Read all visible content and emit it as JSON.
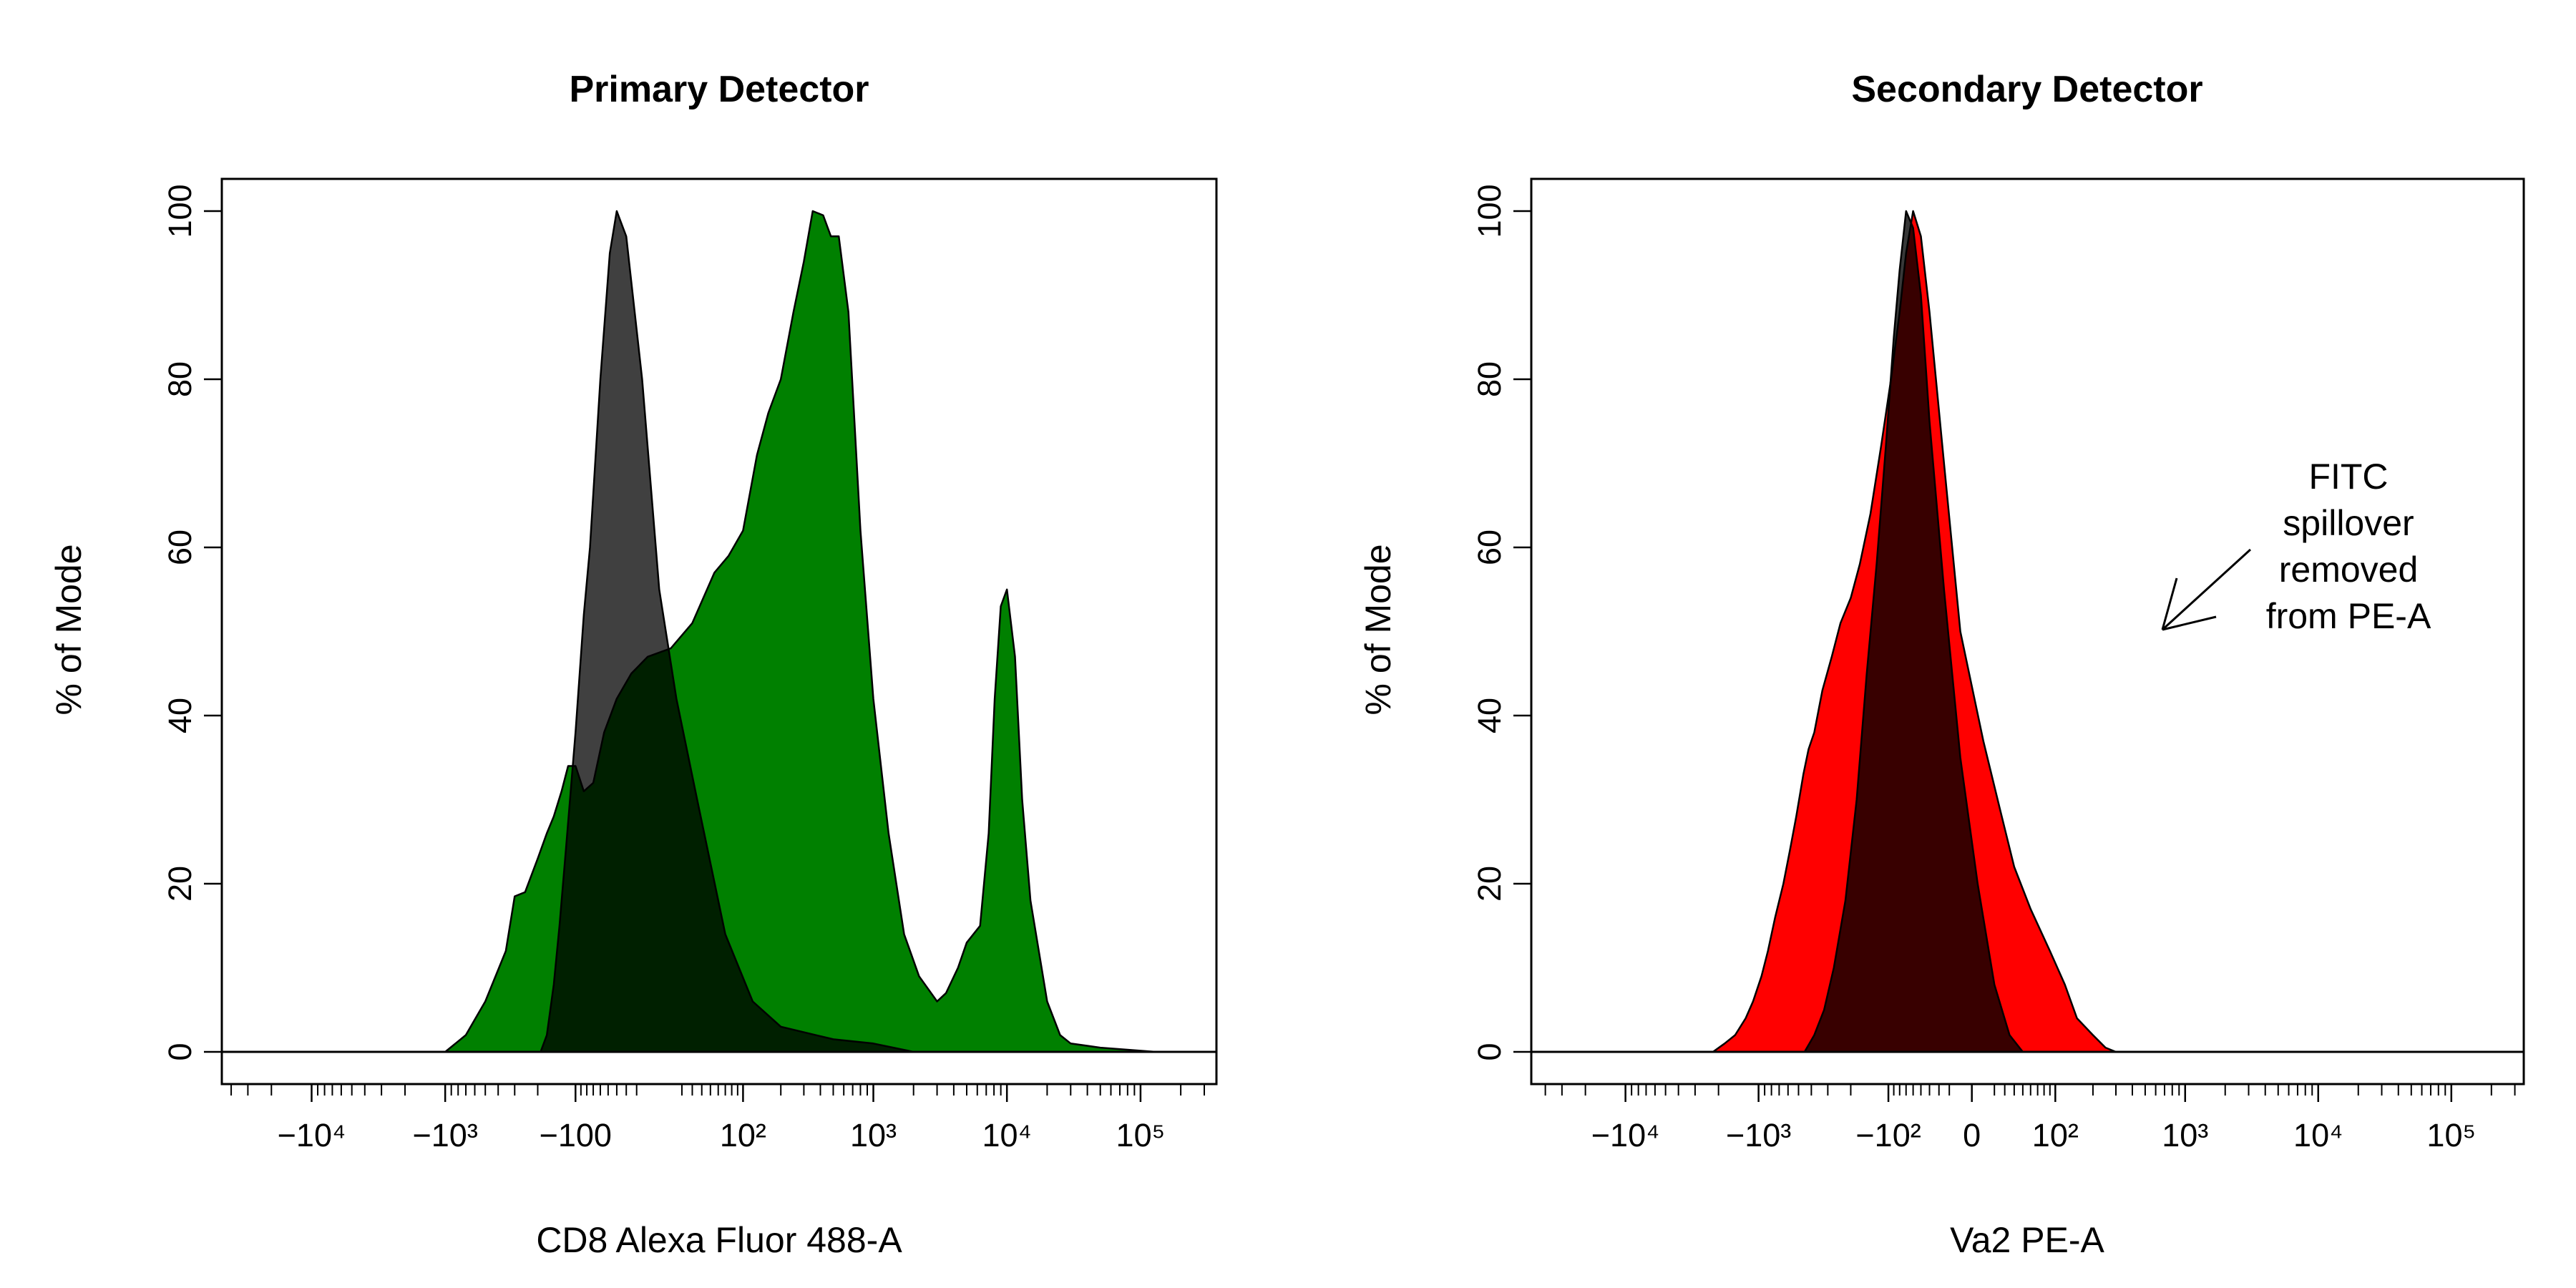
{
  "chart_data": [
    {
      "type": "area",
      "title": "Primary Detector",
      "xlabel": "CD8 Alexa Fluor 488-A",
      "ylabel": "% of Mode",
      "x_scale": "biexponential",
      "ylim": [
        0,
        100
      ],
      "y_ticks": [
        "0",
        "20",
        "40",
        "60",
        "80",
        "100"
      ],
      "x_ticks": [
        {
          "value": -10000,
          "label": "−10⁴"
        },
        {
          "value": -1000,
          "label": "−10³"
        },
        {
          "value": -100,
          "label": "−100"
        },
        {
          "value": 100,
          "label": "10²"
        },
        {
          "value": 1000,
          "label": "10³"
        },
        {
          "value": 10000,
          "label": "10⁴"
        },
        {
          "value": 100000,
          "label": "10⁵"
        }
      ],
      "series": [
        {
          "color": "#008000",
          "points": [
            [
              -1000,
              0
            ],
            [
              -700,
              2
            ],
            [
              -500,
              6
            ],
            [
              -350,
              12
            ],
            [
              -300,
              18.5
            ],
            [
              -250,
              19
            ],
            [
              -200,
              23
            ],
            [
              -170,
              26
            ],
            [
              -150,
              28
            ],
            [
              -130,
              31
            ],
            [
              -115,
              34
            ],
            [
              -100,
              34
            ],
            [
              -85,
              31
            ],
            [
              -70,
              32
            ],
            [
              -55,
              38
            ],
            [
              -40,
              42
            ],
            [
              -25,
              45
            ],
            [
              -10,
              47
            ],
            [
              10,
              48
            ],
            [
              30,
              51
            ],
            [
              55,
              57
            ],
            [
              75,
              59
            ],
            [
              100,
              62
            ],
            [
              130,
              71
            ],
            [
              160,
              76
            ],
            [
              200,
              80
            ],
            [
              250,
              88
            ],
            [
              300,
              94
            ],
            [
              350,
              100
            ],
            [
              420,
              99.5
            ],
            [
              480,
              97
            ],
            [
              550,
              97
            ],
            [
              650,
              88
            ],
            [
              800,
              62
            ],
            [
              1000,
              42
            ],
            [
              1300,
              26
            ],
            [
              1700,
              14
            ],
            [
              2200,
              9
            ],
            [
              3000,
              6
            ],
            [
              3500,
              7
            ],
            [
              4300,
              10
            ],
            [
              5000,
              13
            ],
            [
              6300,
              15
            ],
            [
              7300,
              26
            ],
            [
              8100,
              42
            ],
            [
              9000,
              53
            ],
            [
              10000,
              55
            ],
            [
              11500,
              47
            ],
            [
              13000,
              30
            ],
            [
              15000,
              18
            ],
            [
              20000,
              6
            ],
            [
              25000,
              2
            ],
            [
              30000,
              1
            ],
            [
              50000,
              0.5
            ],
            [
              130000,
              0
            ]
          ]
        },
        {
          "color": "#000000",
          "opacity": 0.75,
          "points": [
            [
              -190,
              0
            ],
            [
              -170,
              2
            ],
            [
              -150,
              8
            ],
            [
              -135,
              15
            ],
            [
              -120,
              24
            ],
            [
              -100,
              38
            ],
            [
              -85,
              52
            ],
            [
              -75,
              60
            ],
            [
              -60,
              80
            ],
            [
              -48,
              95
            ],
            [
              -40,
              100
            ],
            [
              -30,
              97
            ],
            [
              -15,
              80
            ],
            [
              0,
              55
            ],
            [
              15,
              42
            ],
            [
              35,
              30
            ],
            [
              70,
              14
            ],
            [
              120,
              6
            ],
            [
              200,
              3
            ],
            [
              500,
              1.5
            ],
            [
              1000,
              1
            ],
            [
              2000,
              0
            ]
          ]
        }
      ]
    },
    {
      "type": "area",
      "title": "Secondary Detector",
      "xlabel": "Va2 PE-A",
      "ylabel": "% of Mode",
      "x_scale": "biexponential",
      "ylim": [
        0,
        100
      ],
      "y_ticks": [
        "0",
        "20",
        "40",
        "60",
        "80",
        "100"
      ],
      "x_ticks": [
        {
          "value": -10000,
          "label": "−10⁴"
        },
        {
          "value": -1000,
          "label": "−10³"
        },
        {
          "value": -100,
          "label": "−10²"
        },
        {
          "value": 0,
          "label": "0"
        },
        {
          "value": 100,
          "label": "10²"
        },
        {
          "value": 1000,
          "label": "10³"
        },
        {
          "value": 10000,
          "label": "10⁴"
        },
        {
          "value": 100000,
          "label": "10⁵"
        }
      ],
      "annotation": [
        "FITC",
        "spillover",
        "removed",
        "from PE-A"
      ],
      "series": [
        {
          "color": "#ff0000",
          "points": [
            [
              -2200,
              0
            ],
            [
              -1800,
              1
            ],
            [
              -1500,
              2
            ],
            [
              -1250,
              4
            ],
            [
              -1100,
              6
            ],
            [
              -950,
              9
            ],
            [
              -850,
              12
            ],
            [
              -750,
              16
            ],
            [
              -650,
              20
            ],
            [
              -580,
              24
            ],
            [
              -520,
              28
            ],
            [
              -460,
              33
            ],
            [
              -420,
              36
            ],
            [
              -380,
              38
            ],
            [
              -330,
              43
            ],
            [
              -280,
              47
            ],
            [
              -240,
              51
            ],
            [
              -200,
              54
            ],
            [
              -170,
              58
            ],
            [
              -140,
              64
            ],
            [
              -115,
              72
            ],
            [
              -95,
              80
            ],
            [
              -80,
              88
            ],
            [
              -70,
              95
            ],
            [
              -60,
              100
            ],
            [
              -50,
              97
            ],
            [
              -40,
              88
            ],
            [
              -25,
              70
            ],
            [
              -10,
              50
            ],
            [
              10,
              37
            ],
            [
              25,
              29
            ],
            [
              40,
              22
            ],
            [
              60,
              17
            ],
            [
              90,
              12
            ],
            [
              120,
              8
            ],
            [
              150,
              4
            ],
            [
              200,
              2
            ],
            [
              250,
              0.5
            ],
            [
              300,
              0
            ]
          ]
        },
        {
          "color": "#000000",
          "opacity": 0.78,
          "points": [
            [
              -450,
              0
            ],
            [
              -380,
              2
            ],
            [
              -320,
              5
            ],
            [
              -270,
              10
            ],
            [
              -220,
              18
            ],
            [
              -180,
              30
            ],
            [
              -150,
              45
            ],
            [
              -125,
              58
            ],
            [
              -105,
              72
            ],
            [
              -90,
              85
            ],
            [
              -80,
              93
            ],
            [
              -70,
              100
            ],
            [
              -60,
              98
            ],
            [
              -50,
              90
            ],
            [
              -40,
              75
            ],
            [
              -25,
              55
            ],
            [
              -10,
              35
            ],
            [
              5,
              20
            ],
            [
              20,
              8
            ],
            [
              35,
              2
            ],
            [
              50,
              0
            ]
          ]
        }
      ]
    }
  ]
}
